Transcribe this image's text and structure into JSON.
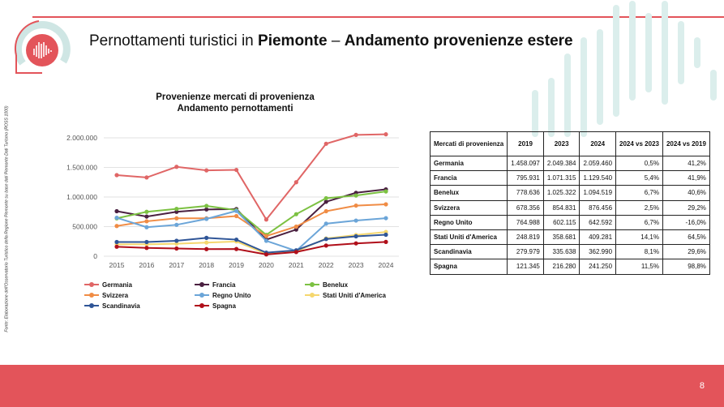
{
  "title": {
    "prefix": "Pernottamenti turistici in ",
    "bold_region": "Piemonte",
    "separator": " – ",
    "bold_topic": "Andamento provenienze estere"
  },
  "side_note": "Fonte: Elaborazione dell'Osservatorio Turistico della Regione Piemonte su base dati Piemonte Dati Turismo (ROSS 1000)",
  "chart_title_line1": "Provenienze mercati di provenienza",
  "chart_title_line2": "Andamento pernottamenti",
  "chart_data": {
    "type": "line",
    "x": [
      "2015",
      "2016",
      "2017",
      "2018",
      "2019",
      "2020",
      "2021",
      "2022",
      "2023",
      "2024"
    ],
    "ylim": [
      0,
      2000000
    ],
    "yticks": [
      "0",
      "500.000",
      "1.000.000",
      "1.500.000",
      "2.000.000"
    ],
    "ytick_values": [
      0,
      500000,
      1000000,
      1500000,
      2000000
    ],
    "grid": true,
    "legend_position": "bottom",
    "series": [
      {
        "name": "Germania",
        "color": "#e06666",
        "values": [
          1370000,
          1330000,
          1510000,
          1450000,
          1458097,
          620000,
          1250000,
          1900000,
          2049384,
          2059460
        ]
      },
      {
        "name": "Francia",
        "color": "#4a2040",
        "values": [
          760000,
          670000,
          750000,
          790000,
          795931,
          280000,
          450000,
          920000,
          1071315,
          1129540
        ]
      },
      {
        "name": "Benelux",
        "color": "#7cc142",
        "values": [
          640000,
          750000,
          800000,
          850000,
          778636,
          360000,
          710000,
          980000,
          1025322,
          1094519
        ]
      },
      {
        "name": "Svizzera",
        "color": "#f08c45",
        "values": [
          510000,
          590000,
          640000,
          640000,
          678356,
          340000,
          500000,
          760000,
          854831,
          876456
        ]
      },
      {
        "name": "Regno Unito",
        "color": "#6ba5d8",
        "values": [
          650000,
          490000,
          530000,
          630000,
          764988,
          260000,
          90000,
          550000,
          602115,
          642592
        ]
      },
      {
        "name": "Stati Uniti d'America",
        "color": "#f5d76e",
        "values": [
          200000,
          200000,
          210000,
          230000,
          248819,
          40000,
          80000,
          300000,
          358681,
          409281
        ]
      },
      {
        "name": "Scandinavia",
        "color": "#2f5597",
        "values": [
          240000,
          240000,
          260000,
          310000,
          279979,
          60000,
          100000,
          290000,
          335638,
          362990
        ]
      },
      {
        "name": "Spagna",
        "color": "#b00f1a",
        "values": [
          160000,
          140000,
          130000,
          120000,
          121345,
          30000,
          70000,
          180000,
          216280,
          241250
        ]
      }
    ]
  },
  "table": {
    "headers": [
      "Mercati di provenienza",
      "2019",
      "2023",
      "2024",
      "2024 vs 2023",
      "2024 vs 2019"
    ],
    "rows": [
      [
        "Germania",
        "1.458.097",
        "2.049.384",
        "2.059.460",
        "0,5%",
        "41,2%"
      ],
      [
        "Francia",
        "795.931",
        "1.071.315",
        "1.129.540",
        "5,4%",
        "41,9%"
      ],
      [
        "Benelux",
        "778.636",
        "1.025.322",
        "1.094.519",
        "6,7%",
        "40,6%"
      ],
      [
        "Svizzera",
        "678.356",
        "854.831",
        "876.456",
        "2,5%",
        "29,2%"
      ],
      [
        "Regno Unito",
        "764.988",
        "602.115",
        "642.592",
        "6,7%",
        "-16,0%"
      ],
      [
        "Stati Uniti d'America",
        "248.819",
        "358.681",
        "409.281",
        "14,1%",
        "64,5%"
      ],
      [
        "Scandinavia",
        "279.979",
        "335.638",
        "362.990",
        "8,1%",
        "29,6%"
      ],
      [
        "Spagna",
        "121.345",
        "216.280",
        "241.250",
        "11,5%",
        "98,8%"
      ]
    ]
  },
  "page_number": "8",
  "colors": {
    "accent": "#e3545a",
    "deco": "#cfe6e4"
  },
  "logo_icon": "piemonte-logo-icon"
}
